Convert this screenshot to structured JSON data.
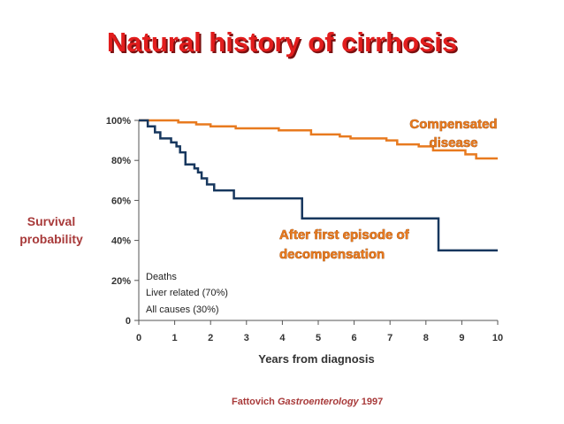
{
  "slide": {
    "title": "Natural history of cirrhosis",
    "citation_author": "Fattovich",
    "citation_journal": "Gastroenterology",
    "citation_year": "1997"
  },
  "chart_data": {
    "type": "line",
    "xlabel": "Years from diagnosis",
    "ylabel_lines": [
      "Survival",
      "probability"
    ],
    "xlim": [
      0,
      10
    ],
    "ylim": [
      0,
      100
    ],
    "x_ticks": [
      0,
      1,
      2,
      3,
      4,
      5,
      6,
      7,
      8,
      9,
      10
    ],
    "y_ticks": [
      0,
      20,
      40,
      60,
      80,
      100
    ],
    "y_tick_labels": [
      "0",
      "20%",
      "40%",
      "60%",
      "80%",
      "100%"
    ],
    "grid": false,
    "series": [
      {
        "name": "Compensated disease",
        "label_lines": [
          "Compensated",
          "disease"
        ],
        "color": "#e87a1f",
        "step": true,
        "points": [
          [
            0,
            100
          ],
          [
            1.1,
            99
          ],
          [
            1.6,
            98
          ],
          [
            2.0,
            97
          ],
          [
            2.7,
            96
          ],
          [
            3.9,
            95
          ],
          [
            4.8,
            93
          ],
          [
            5.6,
            92
          ],
          [
            5.9,
            91
          ],
          [
            6.9,
            90
          ],
          [
            7.2,
            88
          ],
          [
            7.8,
            87
          ],
          [
            8.2,
            85
          ],
          [
            9.1,
            83
          ],
          [
            9.4,
            81
          ],
          [
            10,
            81
          ]
        ]
      },
      {
        "name": "After first episode of decompensation",
        "label_lines": [
          "After first episode of",
          "decompensation"
        ],
        "color": "#17375e",
        "step": true,
        "points": [
          [
            0,
            100
          ],
          [
            0.25,
            97
          ],
          [
            0.45,
            94
          ],
          [
            0.6,
            91
          ],
          [
            0.9,
            89
          ],
          [
            1.05,
            87
          ],
          [
            1.15,
            84
          ],
          [
            1.3,
            78
          ],
          [
            1.55,
            76
          ],
          [
            1.65,
            74
          ],
          [
            1.75,
            71
          ],
          [
            1.9,
            68
          ],
          [
            2.1,
            65
          ],
          [
            2.65,
            61
          ],
          [
            4.55,
            51
          ],
          [
            8.35,
            35
          ],
          [
            10,
            35
          ]
        ]
      }
    ],
    "annotation_lines": [
      "Deaths",
      "Liver related (70%)",
      "All causes (30%)"
    ]
  }
}
